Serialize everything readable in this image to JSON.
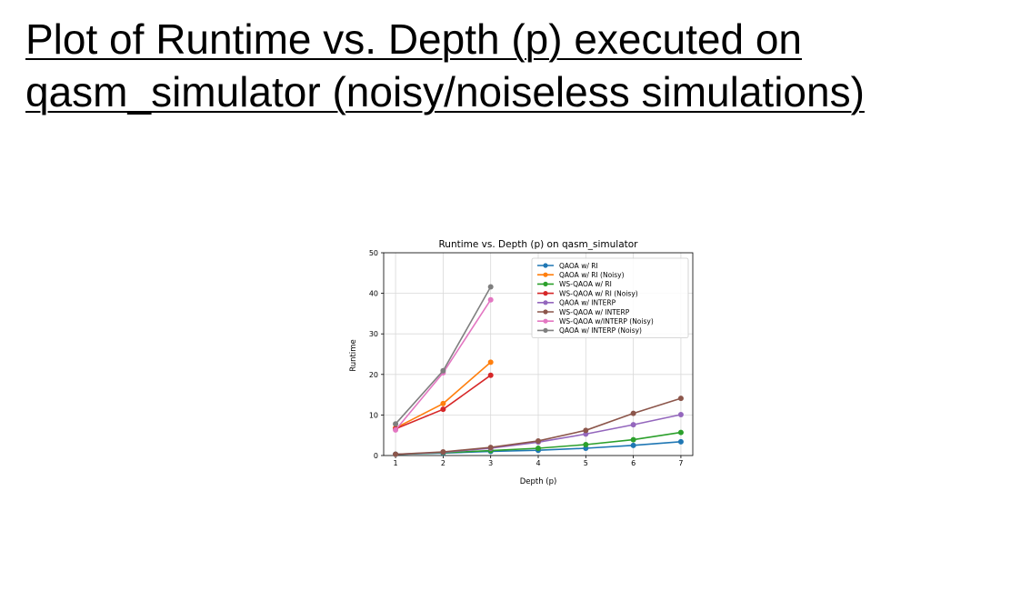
{
  "slide": {
    "title_line1": "Plot of Runtime vs. Depth (p) executed on",
    "title_line2": "qasm_simulator (noisy/noiseless simulations)"
  },
  "chart_data": {
    "type": "line",
    "title": "Runtime vs. Depth (p) on qasm_simulator",
    "xlabel": "Depth (p)",
    "ylabel": "Runtime",
    "xlim": [
      0.75,
      7.25
    ],
    "ylim": [
      0,
      50
    ],
    "xticks": [
      1,
      2,
      3,
      4,
      5,
      6,
      7
    ],
    "yticks": [
      0,
      10,
      20,
      30,
      40,
      50
    ],
    "grid": true,
    "legend_position": "top-right",
    "series": [
      {
        "name": "QAOA w/ RI",
        "color": "#1f77b4",
        "x": [
          1,
          2,
          3,
          4,
          5,
          6,
          7
        ],
        "y": [
          0.3,
          0.6,
          1.0,
          1.3,
          1.8,
          2.5,
          3.4
        ]
      },
      {
        "name": "QAOA w/ RI (Noisy)",
        "color": "#ff7f0e",
        "x": [
          1,
          2,
          3
        ],
        "y": [
          6.8,
          12.8,
          23.0
        ]
      },
      {
        "name": "WS-QAOA w/ RI",
        "color": "#2ca02c",
        "x": [
          1,
          2,
          3,
          4,
          5,
          6,
          7
        ],
        "y": [
          0.3,
          0.7,
          1.2,
          1.8,
          2.7,
          3.9,
          5.7
        ]
      },
      {
        "name": "WS-QAOA w/ RI (Noisy)",
        "color": "#d62728",
        "x": [
          1,
          2,
          3
        ],
        "y": [
          6.6,
          11.4,
          19.8
        ]
      },
      {
        "name": "QAOA w/ INTERP",
        "color": "#9467bd",
        "x": [
          1,
          2,
          3,
          4,
          5,
          6,
          7
        ],
        "y": [
          0.3,
          0.8,
          1.8,
          3.3,
          5.3,
          7.6,
          10.1
        ]
      },
      {
        "name": "WS-QAOA w/ INTERP",
        "color": "#8c564b",
        "x": [
          1,
          2,
          3,
          4,
          5,
          6,
          7
        ],
        "y": [
          0.3,
          0.9,
          2.0,
          3.6,
          6.2,
          10.4,
          14.1
        ]
      },
      {
        "name": "WS-QAOA w/INTERP (Noisy)",
        "color": "#e377c2",
        "x": [
          1,
          2,
          3
        ],
        "y": [
          6.3,
          20.4,
          38.4
        ]
      },
      {
        "name": "QAOA w/ INTERP (Noisy)",
        "color": "#7f7f7f",
        "x": [
          1,
          2,
          3
        ],
        "y": [
          7.8,
          20.9,
          41.6
        ]
      }
    ]
  }
}
